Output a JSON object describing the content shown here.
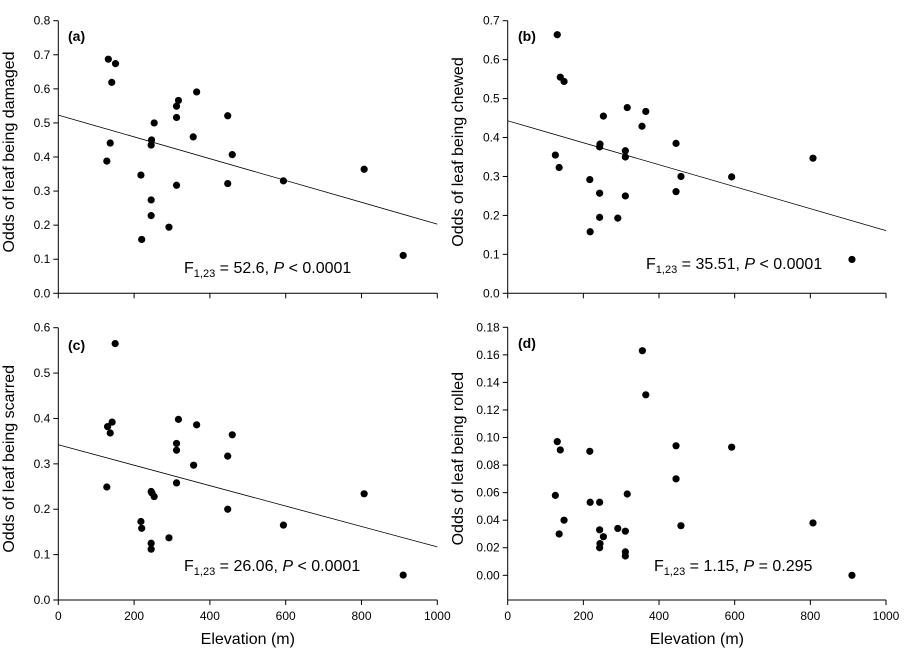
{
  "chart_data": [
    {
      "type": "scatter",
      "panel_label": "(a)",
      "xlabel": "",
      "ylabel": "Odds of leaf being damaged",
      "xlim": [
        0,
        1000
      ],
      "ylim": [
        0,
        0.8
      ],
      "xticks": [
        0,
        200,
        400,
        600,
        800,
        1000
      ],
      "xtick_labels_shown": false,
      "yticks": [
        "0.0",
        "0.1",
        "0.2",
        "0.3",
        "0.4",
        "0.5",
        "0.6",
        "0.7",
        "0.8"
      ],
      "grid": false,
      "fit_line": {
        "x": [
          0,
          1000
        ],
        "y": [
          0.523,
          0.203
        ]
      },
      "stat": {
        "f": "F",
        "sub": "1,23",
        "mid": " = 52.6, ",
        "p": "P",
        "tail": " < 0.0001"
      },
      "points": [
        [
          132,
          0.687
        ],
        [
          151,
          0.674
        ],
        [
          141,
          0.619
        ],
        [
          137,
          0.441
        ],
        [
          128,
          0.388
        ],
        [
          218,
          0.347
        ],
        [
          220,
          0.158
        ],
        [
          245,
          0.274
        ],
        [
          245,
          0.228
        ],
        [
          246,
          0.45
        ],
        [
          245,
          0.435
        ],
        [
          253,
          0.5
        ],
        [
          292,
          0.194
        ],
        [
          312,
          0.317
        ],
        [
          312,
          0.516
        ],
        [
          312,
          0.549
        ],
        [
          317,
          0.566
        ],
        [
          365,
          0.591
        ],
        [
          356,
          0.459
        ],
        [
          447,
          0.521
        ],
        [
          447,
          0.322
        ],
        [
          459,
          0.407
        ],
        [
          594,
          0.33
        ],
        [
          807,
          0.364
        ],
        [
          910,
          0.111
        ]
      ]
    },
    {
      "type": "scatter",
      "panel_label": "(b)",
      "xlabel": "",
      "ylabel": "Odds of leaf being chewed",
      "xlim": [
        0,
        1000
      ],
      "ylim": [
        0,
        0.7
      ],
      "xticks": [
        0,
        200,
        400,
        600,
        800,
        1000
      ],
      "xtick_labels_shown": false,
      "yticks": [
        "0.0",
        "0.1",
        "0.2",
        "0.3",
        "0.4",
        "0.5",
        "0.6",
        "0.7"
      ],
      "grid": false,
      "fit_line": {
        "x": [
          0,
          1000
        ],
        "y": [
          0.443,
          0.161
        ]
      },
      "stat": {
        "f": "F",
        "sub": "1,23",
        "mid": " = 35.51, ",
        "p": "P",
        "tail": " < 0.0001"
      },
      "points": [
        [
          131,
          0.664
        ],
        [
          139,
          0.555
        ],
        [
          149,
          0.544
        ],
        [
          126,
          0.355
        ],
        [
          136,
          0.323
        ],
        [
          217,
          0.292
        ],
        [
          218,
          0.158
        ],
        [
          243,
          0.257
        ],
        [
          243,
          0.195
        ],
        [
          244,
          0.383
        ],
        [
          243,
          0.376
        ],
        [
          253,
          0.455
        ],
        [
          291,
          0.193
        ],
        [
          311,
          0.25
        ],
        [
          311,
          0.366
        ],
        [
          311,
          0.35
        ],
        [
          316,
          0.477
        ],
        [
          365,
          0.467
        ],
        [
          355,
          0.429
        ],
        [
          445,
          0.385
        ],
        [
          445,
          0.261
        ],
        [
          458,
          0.3
        ],
        [
          592,
          0.299
        ],
        [
          807,
          0.347
        ],
        [
          910,
          0.087
        ]
      ]
    },
    {
      "type": "scatter",
      "panel_label": "(c)",
      "xlabel": "Elevation (m)",
      "ylabel": "Odds of leaf being scarred",
      "xlim": [
        0,
        1000
      ],
      "ylim": [
        0,
        0.6
      ],
      "xticks": [
        0,
        200,
        400,
        600,
        800,
        1000
      ],
      "xtick_labels_shown": true,
      "xtick_labels": [
        "0",
        "200",
        "400",
        "600",
        "800",
        "1000"
      ],
      "yticks": [
        "0.0",
        "0.1",
        "0.2",
        "0.3",
        "0.4",
        "0.5",
        "0.6"
      ],
      "grid": false,
      "fit_line": {
        "x": [
          0,
          1000
        ],
        "y": [
          0.342,
          0.117
        ]
      },
      "stat": {
        "f": "F",
        "sub": "1,23",
        "mid": " = 26.06, ",
        "p": "P",
        "tail": " < 0.0001"
      },
      "points": [
        [
          150,
          0.565
        ],
        [
          142,
          0.392
        ],
        [
          130,
          0.382
        ],
        [
          137,
          0.368
        ],
        [
          128,
          0.249
        ],
        [
          218,
          0.173
        ],
        [
          220,
          0.158
        ],
        [
          245,
          0.239
        ],
        [
          247,
          0.236
        ],
        [
          253,
          0.228
        ],
        [
          245,
          0.125
        ],
        [
          245,
          0.112
        ],
        [
          292,
          0.137
        ],
        [
          312,
          0.258
        ],
        [
          312,
          0.345
        ],
        [
          312,
          0.33
        ],
        [
          317,
          0.398
        ],
        [
          357,
          0.297
        ],
        [
          365,
          0.386
        ],
        [
          447,
          0.317
        ],
        [
          447,
          0.2
        ],
        [
          459,
          0.364
        ],
        [
          594,
          0.165
        ],
        [
          807,
          0.234
        ],
        [
          910,
          0.055
        ]
      ]
    },
    {
      "type": "scatter",
      "panel_label": "(d)",
      "xlabel": "Elevation (m)",
      "ylabel": "Odds of leaf being rolled",
      "xlim": [
        0,
        1000
      ],
      "ylim": [
        -0.018,
        0.18
      ],
      "xticks": [
        0,
        200,
        400,
        600,
        800,
        1000
      ],
      "xtick_labels_shown": true,
      "xtick_labels": [
        "0",
        "200",
        "400",
        "600",
        "800",
        "1000"
      ],
      "yticks": [
        "0.00",
        "0.02",
        "0.04",
        "0.06",
        "0.08",
        "0.10",
        "0.12",
        "0.14",
        "0.16",
        "0.18"
      ],
      "grid": false,
      "fit_line": null,
      "stat": {
        "f": "F",
        "sub": "1,23",
        "mid": " = 1.15, ",
        "p": "P",
        "tail": " = 0.295"
      },
      "points": [
        [
          356,
          0.163
        ],
        [
          365,
          0.131
        ],
        [
          131,
          0.097
        ],
        [
          139,
          0.091
        ],
        [
          217,
          0.09
        ],
        [
          445,
          0.094
        ],
        [
          592,
          0.093
        ],
        [
          445,
          0.07
        ],
        [
          126,
          0.058
        ],
        [
          316,
          0.059
        ],
        [
          218,
          0.053
        ],
        [
          243,
          0.053
        ],
        [
          149,
          0.04
        ],
        [
          136,
          0.03
        ],
        [
          243,
          0.033
        ],
        [
          291,
          0.034
        ],
        [
          311,
          0.032
        ],
        [
          253,
          0.028
        ],
        [
          244,
          0.023
        ],
        [
          243,
          0.02
        ],
        [
          311,
          0.017
        ],
        [
          311,
          0.014
        ],
        [
          458,
          0.036
        ],
        [
          807,
          0.038
        ],
        [
          910,
          0.0
        ]
      ]
    }
  ]
}
